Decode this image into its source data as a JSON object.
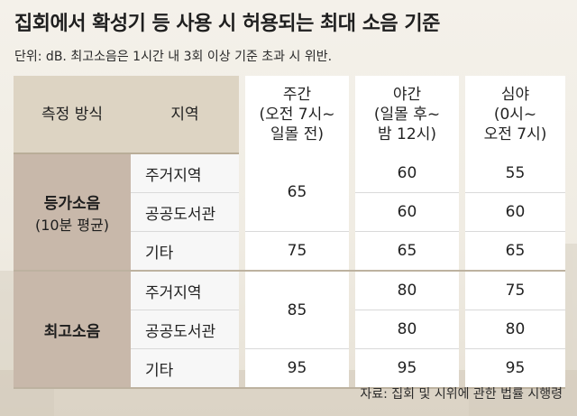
{
  "title": "집회에서 확성기 등 사용 시 허용되는 최대 소음 기준",
  "unit_note": "단위: dB. 최고소음은 1시간 내 3회 이상 기준 초과 시 위반.",
  "table": {
    "headers": {
      "method": "측정 방식",
      "area": "지역",
      "day": [
        "주간",
        "(오전 7시~",
        "일몰 전)"
      ],
      "evening": [
        "야간",
        "(일몰 후~",
        "밤 12시)"
      ],
      "night": [
        "심야",
        "(0시~",
        "오전 7시)"
      ]
    },
    "groups": [
      {
        "name": "등가소음",
        "sub": "(10분 평균)",
        "rows": [
          {
            "area": "주거지역",
            "evening": "60",
            "night": "55"
          },
          {
            "area": "공공도서관",
            "evening": "60",
            "night": "60"
          },
          {
            "area": "기타",
            "day": "75",
            "evening": "65",
            "night": "65"
          }
        ],
        "merged_day": "65"
      },
      {
        "name": "최고소음",
        "sub": "",
        "rows": [
          {
            "area": "주거지역",
            "evening": "80",
            "night": "75"
          },
          {
            "area": "공공도서관",
            "evening": "80",
            "night": "80"
          },
          {
            "area": "기타",
            "day": "95",
            "evening": "95",
            "night": "95"
          }
        ],
        "merged_day": "85"
      }
    ]
  },
  "source": "자료: 집회 및 시위에 관한 법률 시행령"
}
